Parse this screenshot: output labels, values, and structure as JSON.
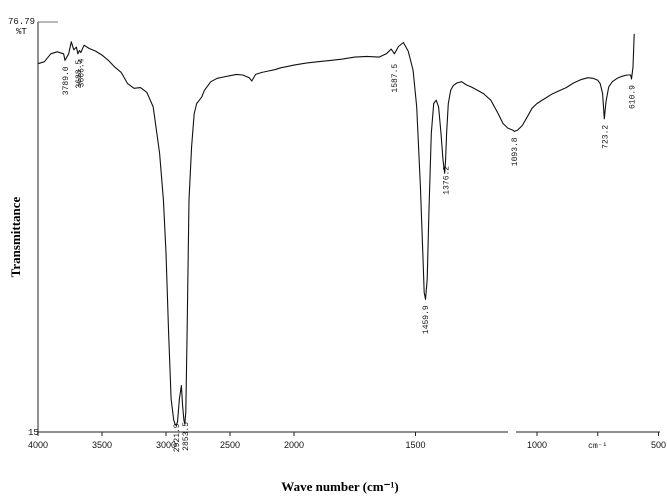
{
  "chart_data": {
    "type": "line",
    "title": "",
    "xlabel": "Wave number (cm⁻¹)",
    "ylabel": "Transmittance",
    "y_unit_label": "%T",
    "x_unit_label": "cm⁻¹",
    "ylim": [
      15,
      76.79
    ],
    "ylim_labels": [
      "15",
      "76.79"
    ],
    "x_axis_reversed": true,
    "x_ticks": [
      {
        "value": 4000,
        "label": "4000"
      },
      {
        "value": 3500,
        "label": "3500"
      },
      {
        "value": 3000,
        "label": "3000"
      },
      {
        "value": 2500,
        "label": "2500"
      },
      {
        "value": 2000,
        "label": "2000"
      },
      {
        "value": 1500,
        "label": "1500"
      },
      {
        "value": 1000,
        "label": "1000"
      },
      {
        "value": 750,
        "label": "cm⁻¹"
      },
      {
        "value": 500,
        "label": "500"
      }
    ],
    "peak_labels": [
      {
        "x": 3789.0,
        "y": 71.0,
        "label": "3789.0"
      },
      {
        "x": 3688.5,
        "y": 72.0,
        "label": "3688.5"
      },
      {
        "x": 3666.4,
        "y": 72.2,
        "label": "3666.4"
      },
      {
        "x": 2921.9,
        "y": 16.0,
        "label": "2921.9"
      },
      {
        "x": 2853.5,
        "y": 16.2,
        "label": "2853.5"
      },
      {
        "x": 1587.5,
        "y": 71.4,
        "label": "1587.5"
      },
      {
        "x": 1459.9,
        "y": 35.0,
        "label": "1459.9"
      },
      {
        "x": 1376.2,
        "y": 56.0,
        "label": "1376.2"
      },
      {
        "x": 1093.8,
        "y": 60.3,
        "label": "1093.8"
      },
      {
        "x": 723.2,
        "y": 62.2,
        "label": "723.2"
      },
      {
        "x": 610.9,
        "y": 68.2,
        "label": "610.9"
      }
    ],
    "series": [
      {
        "x": [
          4000,
          3950,
          3900,
          3850,
          3800,
          3789,
          3760,
          3740,
          3720,
          3700,
          3688,
          3676,
          3666,
          3640,
          3600,
          3550,
          3500,
          3450,
          3400,
          3350,
          3300,
          3250,
          3200,
          3150,
          3100,
          3050,
          3020,
          3000,
          2980,
          2960,
          2940,
          2930,
          2921,
          2910,
          2895,
          2880,
          2870,
          2860,
          2853,
          2845,
          2835,
          2820,
          2800,
          2780,
          2760,
          2740,
          2720,
          2700,
          2650,
          2600,
          2550,
          2500,
          2450,
          2400,
          2350,
          2330,
          2300,
          2250,
          2200,
          2150,
          2100,
          2050,
          2000,
          1950,
          1900,
          1850,
          1800,
          1750,
          1700,
          1650,
          1620,
          1600,
          1587,
          1570,
          1550,
          1530,
          1510,
          1495,
          1480,
          1470,
          1464,
          1459,
          1452,
          1445,
          1435,
          1425,
          1415,
          1405,
          1395,
          1387,
          1380,
          1376,
          1372,
          1365,
          1355,
          1345,
          1330,
          1310,
          1290,
          1270,
          1250,
          1220,
          1190,
          1160,
          1140,
          1120,
          1100,
          1093,
          1080,
          1060,
          1040,
          1020,
          1000,
          970,
          940,
          910,
          880,
          850,
          820,
          790,
          770,
          750,
          740,
          730,
          723,
          716,
          705,
          690,
          670,
          650,
          630,
          615,
          611,
          605,
          600
        ],
        "y": [
          70.5,
          70.8,
          72.0,
          72.3,
          72.0,
          71.0,
          72.0,
          73.8,
          72.6,
          73.0,
          72.0,
          72.5,
          72.2,
          73.3,
          72.8,
          72.4,
          71.8,
          71.0,
          70.0,
          69.2,
          67.5,
          66.8,
          66.9,
          66.2,
          64.0,
          57.0,
          50.0,
          42.0,
          30.0,
          20.0,
          16.8,
          16.2,
          16.0,
          16.5,
          20.0,
          22.0,
          19.0,
          16.8,
          16.2,
          18.0,
          30.0,
          50.0,
          58.0,
          63.0,
          64.5,
          65.0,
          65.5,
          66.5,
          67.8,
          68.3,
          68.5,
          68.7,
          68.9,
          68.8,
          68.4,
          67.9,
          68.9,
          69.2,
          69.4,
          69.6,
          69.9,
          70.1,
          70.3,
          70.6,
          70.8,
          71.0,
          71.2,
          71.5,
          71.6,
          71.5,
          72.0,
          72.7,
          72.0,
          73.1,
          73.7,
          72.4,
          69.5,
          64.0,
          52.0,
          42.0,
          36.0,
          35.0,
          38.0,
          48.0,
          60.0,
          64.5,
          65.0,
          64.0,
          60.0,
          56.0,
          54.0,
          56.0,
          60.0,
          64.5,
          66.5,
          67.2,
          67.6,
          67.8,
          67.3,
          67.0,
          66.6,
          66.0,
          65.0,
          63.0,
          61.5,
          60.8,
          60.5,
          60.3,
          60.5,
          61.2,
          62.5,
          63.8,
          64.5,
          65.2,
          65.9,
          66.4,
          66.9,
          67.6,
          68.1,
          68.4,
          68.3,
          68.0,
          67.5,
          66.0,
          62.2,
          64.8,
          67.0,
          67.8,
          68.3,
          68.6,
          68.8,
          68.8,
          68.2,
          70.0,
          75.0
        ]
      }
    ],
    "grid": false,
    "legend": "none"
  }
}
